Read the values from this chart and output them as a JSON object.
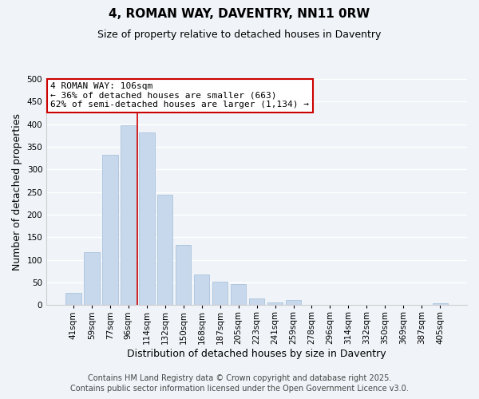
{
  "title": "4, ROMAN WAY, DAVENTRY, NN11 0RW",
  "subtitle": "Size of property relative to detached houses in Daventry",
  "xlabel": "Distribution of detached houses by size in Daventry",
  "ylabel": "Number of detached properties",
  "bar_color": "#c8d8ec",
  "bar_edge_color": "#b0c8e0",
  "highlight_bar_edge_color": "#cc0000",
  "categories": [
    "41sqm",
    "59sqm",
    "77sqm",
    "96sqm",
    "114sqm",
    "132sqm",
    "150sqm",
    "168sqm",
    "187sqm",
    "205sqm",
    "223sqm",
    "241sqm",
    "259sqm",
    "278sqm",
    "296sqm",
    "314sqm",
    "332sqm",
    "350sqm",
    "369sqm",
    "387sqm",
    "405sqm"
  ],
  "values": [
    27,
    117,
    333,
    397,
    382,
    244,
    133,
    68,
    51,
    46,
    15,
    6,
    11,
    0,
    0,
    0,
    0,
    0,
    0,
    0,
    4
  ],
  "ylim": [
    0,
    500
  ],
  "yticks": [
    0,
    50,
    100,
    150,
    200,
    250,
    300,
    350,
    400,
    450,
    500
  ],
  "annotation_line1": "4 ROMAN WAY: 106sqm",
  "annotation_line2": "← 36% of detached houses are smaller (663)",
  "annotation_line3": "62% of semi-detached houses are larger (1,134) →",
  "annotation_box_color": "#ffffff",
  "annotation_box_edge_color": "#cc0000",
  "property_bar_index": 3,
  "footer_line1": "Contains HM Land Registry data © Crown copyright and database right 2025.",
  "footer_line2": "Contains public sector information licensed under the Open Government Licence v3.0.",
  "bg_color": "#f0f4f8",
  "grid_color": "#ffffff",
  "title_fontsize": 11,
  "subtitle_fontsize": 9,
  "axis_label_fontsize": 9,
  "tick_fontsize": 7.5,
  "annotation_fontsize": 8,
  "footer_fontsize": 7
}
